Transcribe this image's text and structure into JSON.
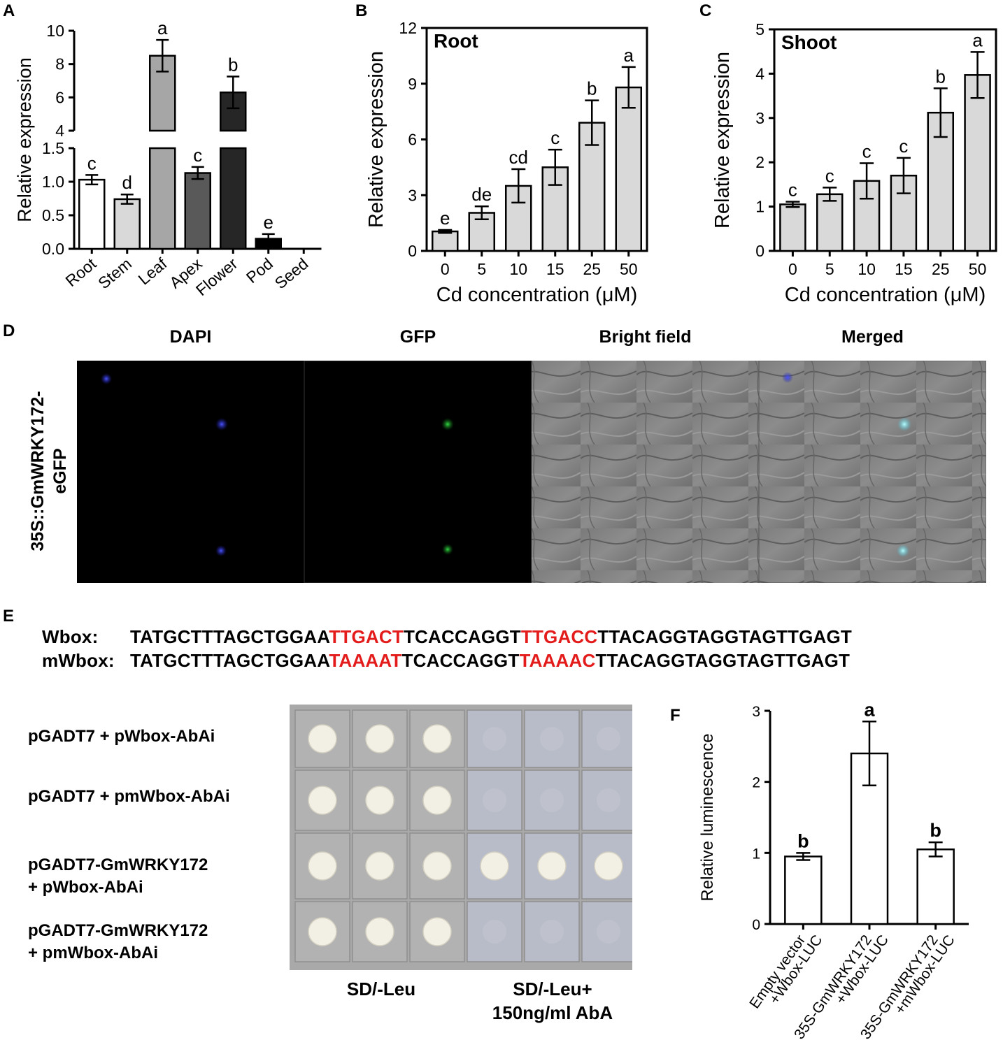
{
  "panel_letters": {
    "A": "A",
    "B": "B",
    "C": "C",
    "D": "D",
    "E": "E",
    "F": "F"
  },
  "chart_data": [
    {
      "panel": "A",
      "type": "bar",
      "ylabel": "Relative expression",
      "y_axis_break": {
        "lower": [
          0,
          1.5
        ],
        "upper": [
          4,
          10
        ]
      },
      "lower_ticks": [
        "0.0",
        "0.5",
        "1.0",
        "1.5"
      ],
      "upper_ticks": [
        "4",
        "6",
        "8",
        "10"
      ],
      "categories": [
        "Root",
        "Stem",
        "Leaf",
        "Apex",
        "Flower",
        "Pod",
        "Seed"
      ],
      "values": [
        1.03,
        0.74,
        8.5,
        1.13,
        6.3,
        0.15,
        0
      ],
      "errors": [
        0.07,
        0.07,
        0.95,
        0.09,
        0.95,
        0.07,
        0
      ],
      "letters": [
        "c",
        "d",
        "a",
        "c",
        "b",
        "e",
        ""
      ],
      "colors": [
        "#ffffff",
        "#d9d9d9",
        "#a6a6a6",
        "#595959",
        "#262626",
        "#000000",
        "#000000"
      ]
    },
    {
      "panel": "B",
      "type": "bar",
      "title": "Root",
      "xlabel": "Cd concentration (μM)",
      "ylabel": "Relative expression",
      "ylim": [
        0,
        12
      ],
      "yticks": [
        "0",
        "3",
        "6",
        "9",
        "12"
      ],
      "categories": [
        "0",
        "5",
        "10",
        "15",
        "25",
        "50"
      ],
      "values": [
        1.05,
        2.05,
        3.5,
        4.5,
        6.9,
        8.8
      ],
      "errors": [
        0.08,
        0.35,
        0.9,
        0.95,
        1.2,
        1.1
      ],
      "letters": [
        "e",
        "de",
        "cd",
        "c",
        "b",
        "a"
      ],
      "color": "#d9d9d9"
    },
    {
      "panel": "C",
      "type": "bar",
      "title": "Shoot",
      "xlabel": "Cd concentration (μM)",
      "ylabel": "Relative expression",
      "ylim": [
        0,
        5
      ],
      "yticks": [
        "0",
        "1",
        "2",
        "3",
        "4",
        "5"
      ],
      "categories": [
        "0",
        "5",
        "10",
        "15",
        "25",
        "50"
      ],
      "values": [
        1.05,
        1.28,
        1.58,
        1.7,
        3.12,
        3.97
      ],
      "errors": [
        0.06,
        0.15,
        0.4,
        0.4,
        0.55,
        0.52
      ],
      "letters": [
        "c",
        "c",
        "c",
        "c",
        "b",
        "a"
      ],
      "color": "#d9d9d9"
    },
    {
      "panel": "F",
      "type": "bar",
      "ylabel": "Relative luminescence",
      "ylim": [
        0,
        3
      ],
      "yticks": [
        "0",
        "1",
        "2",
        "3"
      ],
      "categories": [
        [
          "Empty vector",
          "+Wbox-LUC"
        ],
        [
          "35S-GmWRKY172",
          "+Wbox-LUC"
        ],
        [
          "35S-GmWRKY172",
          "+mWbox-LUC"
        ]
      ],
      "values": [
        0.95,
        2.4,
        1.05
      ],
      "errors": [
        0.05,
        0.45,
        0.1
      ],
      "letters": [
        "b",
        "a",
        "b"
      ],
      "color": "#ffffff"
    }
  ],
  "microscopy": {
    "columns": [
      "DAPI",
      "GFP",
      "Bright field",
      "Merged"
    ],
    "row_label": [
      "35S::GmWRKY172-",
      "eGFP"
    ]
  },
  "sequences": {
    "wbox": {
      "label": "Wbox:",
      "parts": [
        "TATGCTTTAGCTGGAA",
        "TTGACT",
        "TCACCAGGT",
        "TTGACC",
        "TTACAGGTAGGTAGTTGAGT"
      ]
    },
    "mwbox": {
      "label": "mWbox:",
      "parts": [
        "TATGCTTTAGCTGGAA",
        "TAAAAT",
        "TCACCAGGT",
        "TAAAAC",
        "TTACAGGTAGGTAGTTGAGT"
      ]
    }
  },
  "y1h": {
    "rows": [
      {
        "line1": "pGADT7 + pWbox-AbAi",
        "line2": ""
      },
      {
        "line1": "pGADT7 + pmWbox-AbAi",
        "line2": ""
      },
      {
        "line1": "pGADT7-GmWRKY172",
        "line2": "+ pWbox-AbAi"
      },
      {
        "line1": "pGADT7-GmWRKY172",
        "line2": "+ pmWbox-AbAi"
      }
    ],
    "media": [
      {
        "line1": "SD/-Leu",
        "line2": ""
      },
      {
        "line1": "SD/-Leu+",
        "line2": "150ng/ml AbA"
      }
    ],
    "growth": [
      [
        1,
        1,
        1,
        0,
        0,
        0
      ],
      [
        1,
        1,
        1,
        0,
        0,
        0
      ],
      [
        1,
        1,
        1,
        1,
        1,
        1
      ],
      [
        1,
        1,
        1,
        0,
        0,
        0
      ]
    ]
  }
}
